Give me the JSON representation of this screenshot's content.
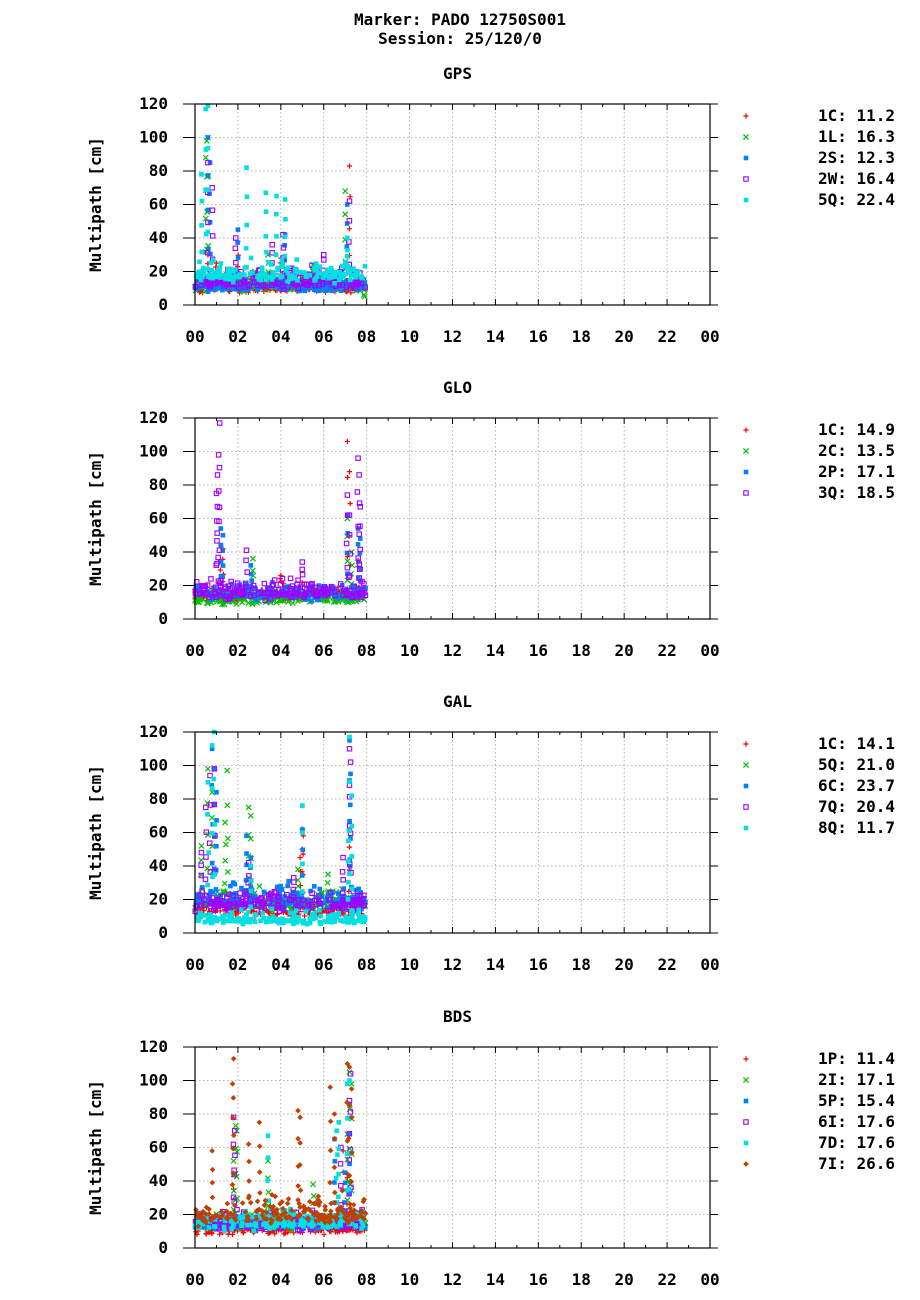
{
  "header": {
    "line1": "Marker: PADO 12750S001",
    "line2": "Session: 25/120/0"
  },
  "chart_data": [
    {
      "type": "scatter",
      "title": "GPS",
      "ylabel": "Multipath [cm]",
      "xlabel": "",
      "ylim": [
        0,
        120
      ],
      "yticks": [
        "0",
        "20",
        "40",
        "60",
        "80",
        "100",
        "120"
      ],
      "xlim": [
        0,
        24
      ],
      "xticks": [
        "00",
        "02",
        "04",
        "06",
        "08",
        "10",
        "12",
        "14",
        "16",
        "18",
        "20",
        "22",
        "00"
      ],
      "grid": true,
      "legend": "right",
      "series": [
        {
          "name": "1C",
          "stat": "11.2",
          "color": "#ff0000",
          "marker": "plus",
          "base": 10,
          "spread": 6,
          "spikes": [
            [
              0.6,
              30
            ],
            [
              1.0,
              25
            ],
            [
              2.0,
              38
            ],
            [
              4.0,
              28
            ],
            [
              7.2,
              83
            ]
          ]
        },
        {
          "name": "1L",
          "stat": "16.3",
          "color": "#00c000",
          "marker": "cross",
          "base": 12,
          "spread": 8,
          "spikes": [
            [
              0.5,
              88
            ],
            [
              0.55,
              98
            ],
            [
              0.6,
              100
            ],
            [
              3.4,
              30
            ],
            [
              5.5,
              24
            ],
            [
              7.0,
              68
            ],
            [
              7.9,
              5
            ]
          ]
        },
        {
          "name": "2S",
          "stat": "12.3",
          "color": "#0080ff",
          "marker": "square",
          "base": 11,
          "spread": 7,
          "spikes": [
            [
              0.6,
              100
            ],
            [
              0.7,
              85
            ],
            [
              2.0,
              45
            ],
            [
              4.2,
              42
            ],
            [
              7.1,
              60
            ]
          ]
        },
        {
          "name": "2W",
          "stat": "16.4",
          "color": "#a000ff",
          "marker": "opensquare",
          "base": 14,
          "spread": 9,
          "spikes": [
            [
              0.6,
              85
            ],
            [
              0.8,
              70
            ],
            [
              1.9,
              40
            ],
            [
              3.6,
              36
            ],
            [
              4.1,
              42
            ],
            [
              6.0,
              30
            ],
            [
              7.2,
              62
            ]
          ]
        },
        {
          "name": "5Q",
          "stat": "22.4",
          "color": "#00e0e0",
          "marker": "square",
          "base": 18,
          "spread": 10,
          "spikes": [
            [
              0.3,
              78
            ],
            [
              0.5,
              117
            ],
            [
              0.6,
              119
            ],
            [
              2.4,
              82
            ],
            [
              3.3,
              67
            ],
            [
              3.8,
              65
            ],
            [
              4.2,
              63
            ],
            [
              7.1,
              40
            ]
          ]
        }
      ]
    },
    {
      "type": "scatter",
      "title": "GLO",
      "ylabel": "Multipath [cm]",
      "xlabel": "",
      "ylim": [
        0,
        120
      ],
      "yticks": [
        "0",
        "20",
        "40",
        "60",
        "80",
        "100",
        "120"
      ],
      "xlim": [
        0,
        24
      ],
      "xticks": [
        "00",
        "02",
        "04",
        "06",
        "08",
        "10",
        "12",
        "14",
        "16",
        "18",
        "20",
        "22",
        "00"
      ],
      "grid": true,
      "legend": "right",
      "series": [
        {
          "name": "1C",
          "stat": "14.9",
          "color": "#ff0000",
          "marker": "plus",
          "base": 14,
          "spread": 8,
          "spikes": [
            [
              1.2,
              44
            ],
            [
              1.3,
              42
            ],
            [
              4.0,
              26
            ],
            [
              7.1,
              106
            ],
            [
              7.2,
              88
            ],
            [
              7.6,
              35
            ]
          ]
        },
        {
          "name": "2C",
          "stat": "13.5",
          "color": "#00c000",
          "marker": "cross",
          "base": 12,
          "spread": 7,
          "spikes": [
            [
              2.7,
              36
            ],
            [
              7.1,
              60
            ],
            [
              7.3,
              40
            ]
          ]
        },
        {
          "name": "2P",
          "stat": "17.1",
          "color": "#0080ff",
          "marker": "square",
          "base": 15,
          "spread": 8,
          "spikes": [
            [
              1.2,
              54
            ],
            [
              1.3,
              50
            ],
            [
              2.6,
              32
            ],
            [
              7.1,
              62
            ],
            [
              7.6,
              54
            ],
            [
              7.7,
              48
            ]
          ]
        },
        {
          "name": "3Q",
          "stat": "18.5",
          "color": "#a000ff",
          "marker": "opensquare",
          "base": 16,
          "spread": 9,
          "spikes": [
            [
              1.15,
              117
            ],
            [
              1.1,
              98
            ],
            [
              1.05,
              86
            ],
            [
              1.0,
              75
            ],
            [
              2.4,
              41
            ],
            [
              5.0,
              34
            ],
            [
              7.1,
              74
            ],
            [
              7.2,
              62
            ],
            [
              7.6,
              96
            ],
            [
              7.65,
              86
            ],
            [
              7.7,
              67
            ]
          ]
        }
      ]
    },
    {
      "type": "scatter",
      "title": "GAL",
      "ylabel": "Multipath [cm]",
      "xlabel": "",
      "ylim": [
        0,
        120
      ],
      "yticks": [
        "0",
        "20",
        "40",
        "60",
        "80",
        "100",
        "120"
      ],
      "xlim": [
        0,
        24
      ],
      "xticks": [
        "00",
        "02",
        "04",
        "06",
        "08",
        "10",
        "12",
        "14",
        "16",
        "18",
        "20",
        "22",
        "00"
      ],
      "grid": true,
      "legend": "right",
      "series": [
        {
          "name": "1C",
          "stat": "14.1",
          "color": "#ff0000",
          "marker": "plus",
          "base": 13,
          "spread": 8,
          "spikes": [
            [
              2.5,
              25
            ],
            [
              4.9,
              45
            ],
            [
              5.0,
              62
            ],
            [
              5.05,
              58
            ],
            [
              7.2,
              62
            ]
          ]
        },
        {
          "name": "5Q",
          "stat": "21.0",
          "color": "#00c000",
          "marker": "cross",
          "base": 18,
          "spread": 10,
          "spikes": [
            [
              0.3,
              52
            ],
            [
              0.6,
              98
            ],
            [
              0.8,
              84
            ],
            [
              1.5,
              97
            ],
            [
              1.4,
              66
            ],
            [
              2.5,
              75
            ],
            [
              2.6,
              70
            ],
            [
              4.8,
              38
            ],
            [
              6.2,
              35
            ]
          ]
        },
        {
          "name": "6C",
          "stat": "23.7",
          "color": "#0080ff",
          "marker": "square",
          "base": 20,
          "spread": 12,
          "spikes": [
            [
              0.8,
              110
            ],
            [
              0.9,
              98
            ],
            [
              1.0,
              84
            ],
            [
              2.4,
              58
            ],
            [
              2.6,
              45
            ],
            [
              5.0,
              76
            ],
            [
              7.2,
              115
            ],
            [
              7.25,
              95
            ]
          ]
        },
        {
          "name": "7Q",
          "stat": "20.4",
          "color": "#a000ff",
          "marker": "opensquare",
          "base": 17,
          "spread": 10,
          "spikes": [
            [
              0.5,
              75
            ],
            [
              0.7,
              94
            ],
            [
              0.9,
              98
            ],
            [
              0.3,
              48
            ],
            [
              2.5,
              42
            ],
            [
              4.6,
              33
            ],
            [
              6.9,
              45
            ],
            [
              7.2,
              110
            ],
            [
              7.25,
              102
            ]
          ]
        },
        {
          "name": "8Q",
          "stat": "11.7",
          "color": "#00e0e0",
          "marker": "square",
          "base": 8,
          "spread": 6,
          "spikes": [
            [
              0.9,
              120
            ],
            [
              0.8,
              112
            ],
            [
              0.6,
              90
            ],
            [
              2.6,
              40
            ],
            [
              5.0,
              76
            ],
            [
              7.2,
              117
            ],
            [
              7.3,
              82
            ],
            [
              7.15,
              55
            ]
          ]
        }
      ]
    },
    {
      "type": "scatter",
      "title": "BDS",
      "ylabel": "Multipath [cm]",
      "xlabel": "",
      "ylim": [
        0,
        120
      ],
      "yticks": [
        "0",
        "20",
        "40",
        "60",
        "80",
        "100",
        "120"
      ],
      "xlim": [
        0,
        24
      ],
      "xticks": [
        "00",
        "02",
        "04",
        "06",
        "08",
        "10",
        "12",
        "14",
        "16",
        "18",
        "20",
        "22",
        "00"
      ],
      "grid": true,
      "legend": "right",
      "series": [
        {
          "name": "1P",
          "stat": "11.4",
          "color": "#ff0000",
          "marker": "plus",
          "base": 11,
          "spread": 7,
          "spikes": [
            [
              1.8,
              35
            ],
            [
              6.9,
              58
            ],
            [
              7.1,
              42
            ]
          ]
        },
        {
          "name": "2I",
          "stat": "17.1",
          "color": "#00c000",
          "marker": "cross",
          "base": 15,
          "spread": 9,
          "spikes": [
            [
              1.9,
              73
            ],
            [
              1.95,
              70
            ],
            [
              1.8,
              52
            ],
            [
              3.4,
              52
            ],
            [
              5.5,
              38
            ],
            [
              7.2,
              105
            ],
            [
              7.3,
              98
            ],
            [
              7.1,
              68
            ]
          ]
        },
        {
          "name": "5P",
          "stat": "15.4",
          "color": "#0080ff",
          "marker": "square",
          "base": 14,
          "spread": 8,
          "spikes": [
            [
              6.5,
              65
            ],
            [
              7.2,
              86
            ],
            [
              7.0,
              45
            ]
          ]
        },
        {
          "name": "6I",
          "stat": "17.6",
          "color": "#a000ff",
          "marker": "opensquare",
          "base": 15,
          "spread": 9,
          "spikes": [
            [
              1.8,
              78
            ],
            [
              1.85,
              70
            ],
            [
              6.8,
              60
            ],
            [
              7.2,
              88
            ],
            [
              7.25,
              104
            ]
          ]
        },
        {
          "name": "7D",
          "stat": "17.6",
          "color": "#00e0e0",
          "marker": "square",
          "base": 15,
          "spread": 9,
          "spikes": [
            [
              3.4,
              67
            ],
            [
              6.6,
              70
            ],
            [
              6.7,
              75
            ],
            [
              7.1,
              98
            ],
            [
              7.2,
              100
            ]
          ]
        },
        {
          "name": "7I",
          "stat": "26.6",
          "color": "#c04000",
          "marker": "diamond",
          "base": 20,
          "spread": 13,
          "spikes": [
            [
              1.8,
              113
            ],
            [
              1.75,
              98
            ],
            [
              0.8,
              58
            ],
            [
              2.5,
              62
            ],
            [
              3.0,
              75
            ],
            [
              4.8,
              82
            ],
            [
              4.9,
              78
            ],
            [
              6.3,
              96
            ],
            [
              6.5,
              80
            ],
            [
              7.1,
              110
            ],
            [
              7.2,
              108
            ],
            [
              7.3,
              95
            ]
          ]
        }
      ]
    }
  ]
}
